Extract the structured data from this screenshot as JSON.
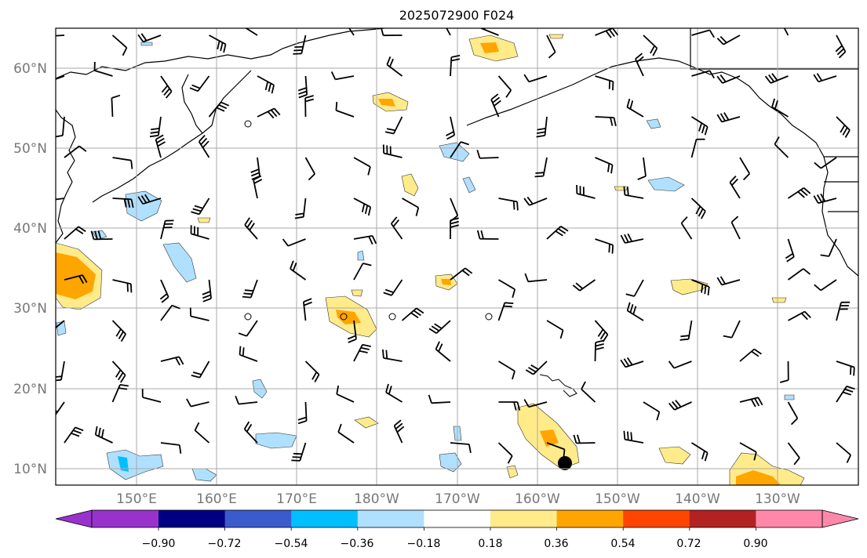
{
  "title": "2025072900 F024",
  "map": {
    "lat_labels": [
      "60°N",
      "50°N",
      "40°N",
      "30°N",
      "20°N",
      "10°N"
    ],
    "lon_labels": [
      "150°E",
      "160°E",
      "170°E",
      "180°W",
      "170°W",
      "160°W",
      "150°W",
      "140°W",
      "130°W"
    ],
    "extent": {
      "lon_min": 140,
      "lon_max": 242,
      "lat_min": 8,
      "lat_max": 65
    },
    "grid": true,
    "wind_barbs": true,
    "contour_fill_colors": {
      "positive_low": "#ffeb8a",
      "positive_mid": "#ffa500",
      "positive_high": "#ff4500",
      "negative_low": "#b0e0ff",
      "negative_mid": "#00bfff"
    }
  },
  "colorbar": {
    "tick_labels": [
      "−0.90",
      "−0.72",
      "−0.54",
      "−0.36",
      "−0.18",
      "0.18",
      "0.36",
      "0.54",
      "0.72",
      "0.90"
    ],
    "colors": [
      "#9932cc",
      "#000080",
      "#3a5bcc",
      "#00bfff",
      "#b0e0ff",
      "#ffffff",
      "#ffeb8a",
      "#ffa500",
      "#ff4500",
      "#b22222",
      "#ff88aa",
      "#ff88aa"
    ],
    "extend": "both"
  }
}
